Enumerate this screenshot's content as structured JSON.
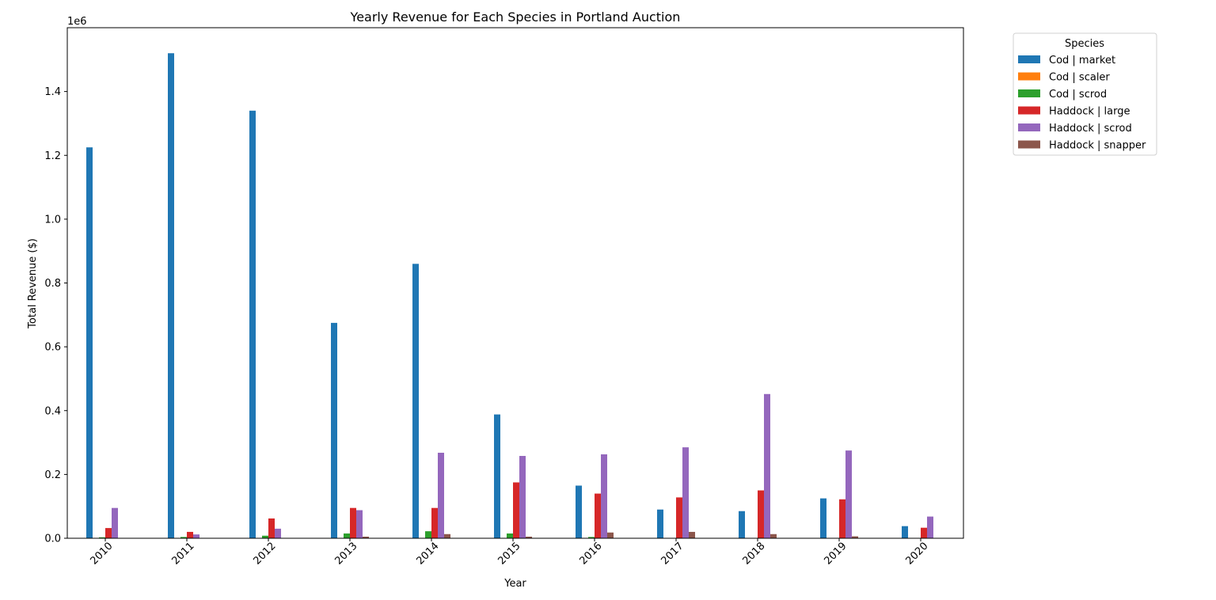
{
  "chart_data": {
    "type": "bar",
    "title": "Yearly Revenue for Each Species in Portland Auction",
    "xlabel": "Year",
    "ylabel": "Total Revenue ($)",
    "y_offset_label": "1e6",
    "ylim": [
      0,
      1600000
    ],
    "ytick_values": [
      0,
      200000,
      400000,
      600000,
      800000,
      1000000,
      1200000,
      1400000
    ],
    "ytick_labels": [
      "0.0",
      "0.2",
      "0.4",
      "0.6",
      "0.8",
      "1.0",
      "1.2",
      "1.4"
    ],
    "grid": false,
    "legend": {
      "title": "Species",
      "placement": "outside upper-right"
    },
    "categories": [
      "2010",
      "2011",
      "2012",
      "2013",
      "2014",
      "2015",
      "2016",
      "2017",
      "2018",
      "2019",
      "2020"
    ],
    "series": [
      {
        "name": "Cod | market",
        "color": "#1f77b4",
        "values": [
          1225000,
          1520000,
          1340000,
          675000,
          860000,
          388000,
          165000,
          90000,
          85000,
          125000,
          38000
        ]
      },
      {
        "name": "Cod | scaler",
        "color": "#ff7f0e",
        "values": [
          0,
          0,
          0,
          0,
          0,
          0,
          0,
          0,
          0,
          0,
          0
        ]
      },
      {
        "name": "Cod | scrod",
        "color": "#2ca02c",
        "values": [
          3000,
          4000,
          8000,
          15000,
          22000,
          15000,
          4000,
          0,
          0,
          0,
          0
        ]
      },
      {
        "name": "Haddock | large",
        "color": "#d62728",
        "values": [
          32000,
          20000,
          62000,
          95000,
          95000,
          175000,
          140000,
          128000,
          150000,
          122000,
          33000
        ]
      },
      {
        "name": "Haddock | scrod",
        "color": "#9467bd",
        "values": [
          95000,
          12000,
          30000,
          88000,
          268000,
          258000,
          263000,
          285000,
          452000,
          275000,
          68000
        ]
      },
      {
        "name": "Haddock | snapper",
        "color": "#8c564b",
        "values": [
          0,
          0,
          0,
          5000,
          13000,
          5000,
          18000,
          20000,
          13000,
          6000,
          0
        ]
      }
    ]
  }
}
